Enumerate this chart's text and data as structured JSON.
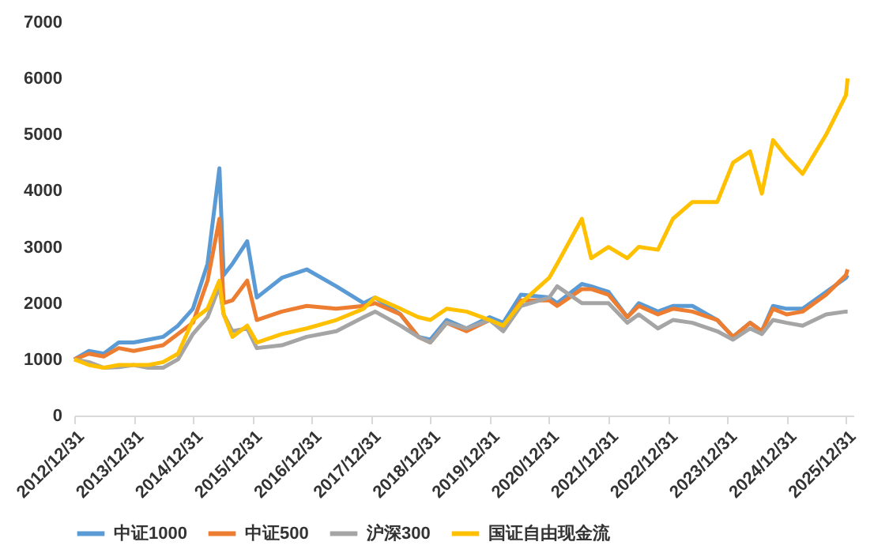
{
  "chart_data": {
    "type": "line",
    "x": [
      "2012-12-31",
      "2013-03-31",
      "2013-06-30",
      "2013-09-30",
      "2013-12-31",
      "2014-03-31",
      "2014-06-30",
      "2014-09-30",
      "2014-12-31",
      "2015-03-31",
      "2015-06-12",
      "2015-07-08",
      "2015-08-31",
      "2015-11-30",
      "2016-01-28",
      "2016-06-30",
      "2016-11-30",
      "2017-05-31",
      "2017-11-15",
      "2018-01-25",
      "2018-06-30",
      "2018-10-18",
      "2018-12-31",
      "2019-04-10",
      "2019-08-10",
      "2019-12-31",
      "2020-03-23",
      "2020-07-10",
      "2020-12-31",
      "2021-02-18",
      "2021-07-20",
      "2021-09-15",
      "2021-12-31",
      "2022-04-26",
      "2022-07-05",
      "2022-10-31",
      "2023-01-31",
      "2023-05-31",
      "2023-10-31",
      "2024-02-05",
      "2024-05-20",
      "2024-07-31",
      "2024-10-08",
      "2024-12-31",
      "2025-04-08",
      "2025-08-31",
      "2025-12-31",
      "2026-01-10"
    ],
    "series": [
      {
        "name": "中证1000",
        "color": "#5b9bd5",
        "values": [
          1000,
          1150,
          1100,
          1300,
          1300,
          1350,
          1400,
          1600,
          1900,
          2700,
          4400,
          2500,
          2700,
          3100,
          2100,
          2450,
          2600,
          2300,
          2000,
          2100,
          1800,
          1400,
          1350,
          1700,
          1550,
          1750,
          1650,
          2150,
          2100,
          2000,
          2340,
          2300,
          2200,
          1750,
          2000,
          1850,
          1950,
          1950,
          1700,
          1400,
          1650,
          1500,
          1950,
          1900,
          1900,
          2200,
          2450,
          2500
        ]
      },
      {
        "name": "中证500",
        "color": "#ed7d31",
        "values": [
          1000,
          1100,
          1050,
          1200,
          1150,
          1200,
          1250,
          1450,
          1650,
          2400,
          3500,
          2000,
          2050,
          2400,
          1700,
          1850,
          1950,
          1900,
          1950,
          2000,
          1800,
          1400,
          1300,
          1650,
          1500,
          1700,
          1550,
          2050,
          2050,
          1950,
          2250,
          2250,
          2150,
          1750,
          1950,
          1800,
          1900,
          1850,
          1700,
          1400,
          1650,
          1500,
          1900,
          1800,
          1850,
          2150,
          2500,
          2600
        ]
      },
      {
        "name": "沪深300",
        "color": "#a5a5a5",
        "values": [
          1000,
          950,
          850,
          860,
          900,
          850,
          850,
          1000,
          1450,
          1750,
          2300,
          1800,
          1500,
          1550,
          1200,
          1250,
          1400,
          1500,
          1750,
          1850,
          1600,
          1400,
          1300,
          1650,
          1550,
          1700,
          1500,
          1950,
          2100,
          2300,
          2000,
          2000,
          2000,
          1650,
          1800,
          1550,
          1700,
          1650,
          1500,
          1350,
          1550,
          1450,
          1700,
          1650,
          1600,
          1800,
          1850,
          1850
        ]
      },
      {
        "name": "国证自由现金流",
        "color": "#ffc000",
        "values": [
          1000,
          900,
          850,
          900,
          900,
          900,
          950,
          1100,
          1700,
          1900,
          2400,
          1800,
          1400,
          1600,
          1300,
          1450,
          1550,
          1700,
          1900,
          2100,
          1900,
          1750,
          1700,
          1900,
          1850,
          1700,
          1600,
          2000,
          2450,
          2700,
          3500,
          2800,
          3000,
          2800,
          3000,
          2950,
          3500,
          3800,
          3800,
          4500,
          4700,
          3950,
          4900,
          4600,
          4300,
          5000,
          5700,
          6000
        ]
      }
    ],
    "xlim": [
      "2012-12-31",
      "2026-02-15"
    ],
    "xticks": [
      {
        "value": "2012-12-31",
        "label": "2012/12/31"
      },
      {
        "value": "2013-12-31",
        "label": "2013/12/31"
      },
      {
        "value": "2014-12-31",
        "label": "2014/12/31"
      },
      {
        "value": "2015-12-31",
        "label": "2015/12/31"
      },
      {
        "value": "2016-12-31",
        "label": "2016/12/31"
      },
      {
        "value": "2017-12-31",
        "label": "2017/12/31"
      },
      {
        "value": "2018-12-31",
        "label": "2018/12/31"
      },
      {
        "value": "2019-12-31",
        "label": "2019/12/31"
      },
      {
        "value": "2020-12-31",
        "label": "2020/12/31"
      },
      {
        "value": "2021-12-31",
        "label": "2021/12/31"
      },
      {
        "value": "2022-12-31",
        "label": "2022/12/31"
      },
      {
        "value": "2023-12-31",
        "label": "2023/12/31"
      },
      {
        "value": "2024-12-31",
        "label": "2024/12/31"
      },
      {
        "value": "2025-12-31",
        "label": "2025/12/31"
      }
    ],
    "ylim": [
      0,
      7000
    ],
    "yticks": [
      0,
      1000,
      2000,
      3000,
      4000,
      5000,
      6000,
      7000
    ],
    "grid": false,
    "legend": "bottom",
    "marker": "none",
    "line_style": "solid"
  }
}
